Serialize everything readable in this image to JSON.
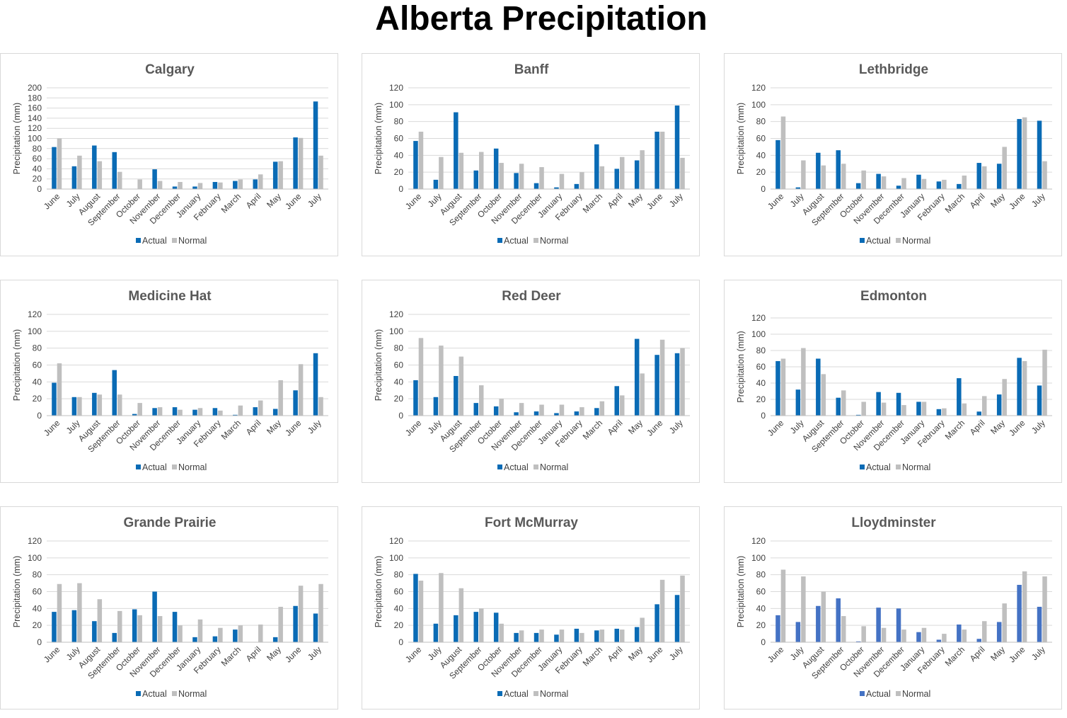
{
  "title": "Alberta Precipitation",
  "colors": {
    "actual": "#0a6bb5",
    "actual_alt": "#4472c4",
    "normal": "#bfbfbf",
    "grid": "#d9d9d9",
    "axis": "#bfbfbf"
  },
  "legend": {
    "actual": "Actual",
    "normal": "Normal"
  },
  "chart_data": [
    {
      "type": "bar",
      "title": "Calgary",
      "ylabel": "Precipitation (mm)",
      "categories": [
        "June",
        "July",
        "August",
        "September",
        "October",
        "November",
        "December",
        "January",
        "February",
        "March",
        "April",
        "May",
        "June",
        "July"
      ],
      "ylim": [
        0,
        200
      ],
      "yticks": [
        0,
        20,
        40,
        60,
        80,
        100,
        120,
        140,
        160,
        180,
        200
      ],
      "series": [
        {
          "name": "Actual",
          "values": [
            83,
            45,
            86,
            73,
            0,
            39,
            5,
            5,
            14,
            16,
            19,
            54,
            102,
            173
          ]
        },
        {
          "name": "Normal",
          "values": [
            100,
            66,
            55,
            34,
            19,
            16,
            14,
            12,
            13,
            19,
            29,
            55,
            101,
            66
          ]
        }
      ]
    },
    {
      "type": "bar",
      "title": "Banff",
      "ylabel": "Precipitation (mm)",
      "categories": [
        "June",
        "July",
        "August",
        "September",
        "October",
        "November",
        "December",
        "January",
        "February",
        "March",
        "April",
        "May",
        "June",
        "July"
      ],
      "ylim": [
        0,
        120
      ],
      "yticks": [
        0,
        20,
        40,
        60,
        80,
        100,
        120
      ],
      "series": [
        {
          "name": "Actual",
          "values": [
            57,
            11,
            91,
            22,
            48,
            19,
            7,
            2,
            6,
            53,
            24,
            34,
            68,
            99
          ]
        },
        {
          "name": "Normal",
          "values": [
            68,
            38,
            43,
            44,
            31,
            30,
            26,
            18,
            20,
            27,
            38,
            46,
            68,
            37
          ]
        }
      ]
    },
    {
      "type": "bar",
      "title": "Lethbridge",
      "ylabel": "Precipitation (mm)",
      "categories": [
        "June",
        "July",
        "August",
        "September",
        "October",
        "November",
        "December",
        "January",
        "February",
        "March",
        "April",
        "May",
        "June",
        "July"
      ],
      "ylim": [
        0,
        120
      ],
      "yticks": [
        0,
        20,
        40,
        60,
        80,
        100,
        120
      ],
      "series": [
        {
          "name": "Actual",
          "values": [
            58,
            2,
            43,
            46,
            7,
            18,
            4,
            17,
            9,
            6,
            31,
            30,
            83,
            81
          ]
        },
        {
          "name": "Normal",
          "values": [
            86,
            34,
            28,
            30,
            22,
            15,
            13,
            12,
            11,
            16,
            27,
            50,
            85,
            33
          ]
        }
      ]
    },
    {
      "type": "bar",
      "title": "Medicine Hat",
      "ylabel": "Precipitation (mm)",
      "categories": [
        "June",
        "July",
        "August",
        "September",
        "October",
        "November",
        "December",
        "January",
        "February",
        "March",
        "April",
        "May",
        "June",
        "July"
      ],
      "ylim": [
        0,
        120
      ],
      "yticks": [
        0,
        20,
        40,
        60,
        80,
        100,
        120
      ],
      "series": [
        {
          "name": "Actual",
          "values": [
            39,
            22,
            27,
            54,
            2,
            9,
            10,
            7,
            9,
            1,
            10,
            8,
            30,
            74
          ]
        },
        {
          "name": "Normal",
          "values": [
            62,
            22,
            25,
            25,
            15,
            10,
            7,
            9,
            6,
            12,
            18,
            42,
            61,
            22
          ]
        }
      ]
    },
    {
      "type": "bar",
      "title": "Red Deer",
      "ylabel": "Precipitation (mm)",
      "categories": [
        "June",
        "July",
        "August",
        "September",
        "October",
        "November",
        "December",
        "January",
        "February",
        "March",
        "April",
        "May",
        "June",
        "July"
      ],
      "ylim": [
        0,
        120
      ],
      "yticks": [
        0,
        20,
        40,
        60,
        80,
        100,
        120
      ],
      "series": [
        {
          "name": "Actual",
          "values": [
            42,
            22,
            47,
            15,
            11,
            4,
            5,
            3,
            5,
            9,
            35,
            91,
            72,
            74
          ]
        },
        {
          "name": "Normal",
          "values": [
            92,
            83,
            70,
            36,
            20,
            15,
            13,
            13,
            10,
            17,
            24,
            50,
            90,
            80
          ]
        }
      ]
    },
    {
      "type": "bar",
      "title": "Edmonton",
      "ylabel": "Precipitation (mm)",
      "categories": [
        "June",
        "July",
        "August",
        "September",
        "October",
        "November",
        "December",
        "January",
        "February",
        "March",
        "April",
        "May",
        "June",
        "July"
      ],
      "ylim": [
        0,
        120
      ],
      "yticks": [
        0,
        20,
        40,
        60,
        80,
        100,
        120
      ],
      "series": [
        {
          "name": "Actual",
          "values": [
            67,
            32,
            70,
            22,
            1,
            29,
            28,
            17,
            8,
            46,
            5,
            26,
            71,
            37
          ]
        },
        {
          "name": "Normal",
          "values": [
            70,
            83,
            51,
            31,
            17,
            16,
            13,
            17,
            9,
            15,
            24,
            45,
            67,
            81
          ]
        }
      ]
    },
    {
      "type": "bar",
      "title": "Grande Prairie",
      "ylabel": "Precipitation (mm)",
      "categories": [
        "June",
        "July",
        "August",
        "September",
        "October",
        "November",
        "December",
        "January",
        "February",
        "March",
        "April",
        "May",
        "June",
        "July"
      ],
      "ylim": [
        0,
        120
      ],
      "yticks": [
        0,
        20,
        40,
        60,
        80,
        100,
        120
      ],
      "series": [
        {
          "name": "Actual",
          "values": [
            36,
            38,
            25,
            11,
            39,
            60,
            36,
            6,
            7,
            15,
            0,
            6,
            43,
            34
          ]
        },
        {
          "name": "Normal",
          "values": [
            69,
            70,
            51,
            37,
            32,
            31,
            20,
            27,
            17,
            20,
            21,
            42,
            67,
            69
          ]
        }
      ]
    },
    {
      "type": "bar",
      "title": "Fort McMurray",
      "ylabel": "Precipitation (mm)",
      "categories": [
        "June",
        "July",
        "August",
        "September",
        "October",
        "November",
        "December",
        "January",
        "February",
        "March",
        "April",
        "May",
        "June",
        "July"
      ],
      "ylim": [
        0,
        120
      ],
      "yticks": [
        0,
        20,
        40,
        60,
        80,
        100,
        120
      ],
      "series": [
        {
          "name": "Actual",
          "values": [
            81,
            22,
            32,
            36,
            35,
            11,
            11,
            9,
            16,
            14,
            16,
            18,
            45,
            56
          ]
        },
        {
          "name": "Normal",
          "values": [
            73,
            82,
            64,
            40,
            22,
            14,
            15,
            15,
            11,
            15,
            15,
            29,
            74,
            79
          ]
        }
      ]
    },
    {
      "type": "bar",
      "title": "Lloydminster",
      "ylabel": "Precipitation (mm)",
      "categories": [
        "June",
        "July",
        "August",
        "September",
        "October",
        "November",
        "December",
        "January",
        "February",
        "March",
        "April",
        "May",
        "June",
        "July"
      ],
      "ylim": [
        0,
        120
      ],
      "yticks": [
        0,
        20,
        40,
        60,
        80,
        100,
        120
      ],
      "series": [
        {
          "name": "Actual",
          "values": [
            32,
            24,
            43,
            52,
            1,
            41,
            40,
            12,
            3,
            21,
            4,
            24,
            68,
            42
          ]
        },
        {
          "name": "Normal",
          "values": [
            86,
            78,
            60,
            31,
            19,
            17,
            15,
            17,
            10,
            15,
            25,
            46,
            84,
            78
          ]
        }
      ]
    }
  ]
}
